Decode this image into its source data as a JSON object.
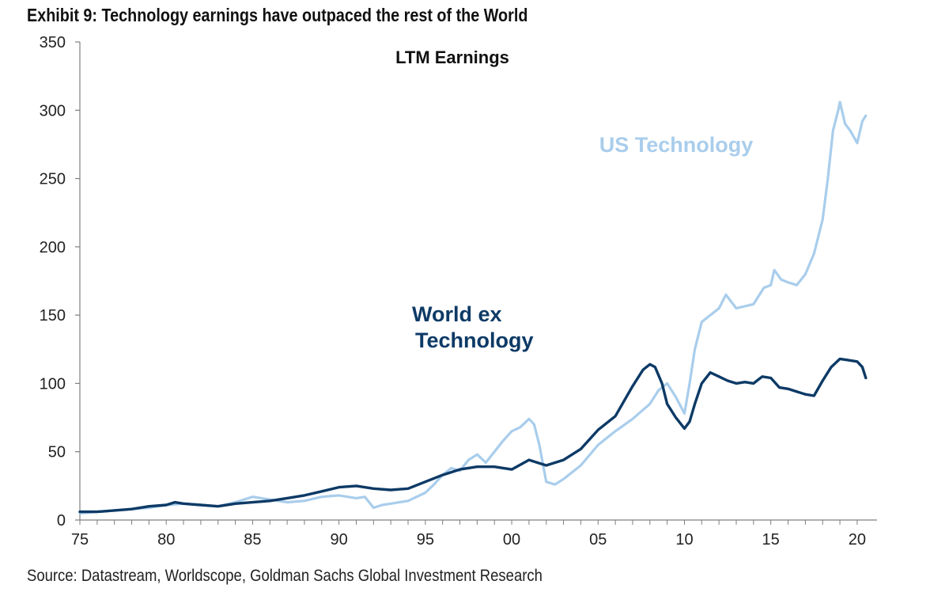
{
  "exhibit_title": "Exhibit 9: Technology earnings have outpaced the rest of the World",
  "source_note": "Source: Datastream, Worldscope, Goldman Sachs Global Investment Research",
  "colors": {
    "us_technology": "#a9cdec",
    "world_ex_technology": "#0d3a66",
    "axis": "#7f7f7f",
    "text": "#111111"
  },
  "chart_data": {
    "type": "line",
    "title": "LTM Earnings",
    "xlabel": "",
    "ylabel": "",
    "xlim": [
      1975,
      2020.6
    ],
    "ylim": [
      0,
      350
    ],
    "grid": false,
    "legend": "inline labels",
    "x_ticks": [
      1975,
      1980,
      1985,
      1990,
      1995,
      2000,
      2005,
      2010,
      2015,
      2020
    ],
    "x_tick_labels": [
      "75",
      "80",
      "85",
      "90",
      "95",
      "00",
      "05",
      "10",
      "15",
      "20"
    ],
    "y_ticks": [
      0,
      50,
      100,
      150,
      200,
      250,
      300,
      350
    ],
    "y_tick_labels": [
      "0",
      "50",
      "100",
      "150",
      "200",
      "250",
      "300",
      "350"
    ],
    "series": [
      {
        "name": "US Technology",
        "label_lines": [
          "US Technology"
        ],
        "x": [
          1975,
          1976,
          1977,
          1978,
          1979,
          1980,
          1981,
          1982,
          1983,
          1984,
          1985,
          1986,
          1987,
          1988,
          1989,
          1990,
          1990.5,
          1991,
          1991.5,
          1992,
          1992.5,
          1993,
          1994,
          1995,
          1995.5,
          1996,
          1996.5,
          1997,
          1997.5,
          1998,
          1998.5,
          1999,
          1999.5,
          2000,
          2000.5,
          2001,
          2001.3,
          2001.6,
          2002,
          2002.5,
          2003,
          2004,
          2005,
          2006,
          2007,
          2008,
          2008.5,
          2009,
          2009.5,
          2010,
          2010.3,
          2010.6,
          2011,
          2011.5,
          2012,
          2012.4,
          2012.7,
          2013,
          2014,
          2014.6,
          2015,
          2015.2,
          2015.6,
          2016,
          2016.5,
          2017,
          2017.5,
          2018,
          2018.3,
          2018.6,
          2018.9,
          2019,
          2019.3,
          2019.6,
          2020,
          2020.3,
          2020.5
        ],
        "values": [
          5,
          6,
          7,
          8,
          9,
          11,
          12,
          11,
          10,
          13,
          17,
          15,
          13,
          14,
          17,
          18,
          17,
          16,
          17,
          9,
          11,
          12,
          14,
          20,
          26,
          33,
          38,
          36,
          44,
          48,
          42,
          50,
          58,
          65,
          68,
          74,
          70,
          55,
          28,
          26,
          30,
          40,
          55,
          65,
          74,
          85,
          95,
          100,
          90,
          78,
          100,
          125,
          145,
          150,
          155,
          165,
          160,
          155,
          158,
          170,
          172,
          183,
          176,
          174,
          172,
          180,
          195,
          220,
          250,
          285,
          300,
          306,
          290,
          285,
          276,
          292,
          296
        ]
      },
      {
        "name": "World ex Technology",
        "label_lines": [
          "World ex",
          "Technology"
        ],
        "x": [
          1975,
          1976,
          1977,
          1978,
          1979,
          1980,
          1980.5,
          1981,
          1982,
          1983,
          1984,
          1985,
          1986,
          1987,
          1988,
          1989,
          1990,
          1991,
          1992,
          1993,
          1994,
          1995,
          1996,
          1997,
          1998,
          1999,
          2000,
          2001,
          2002,
          2003,
          2004,
          2005,
          2006,
          2007,
          2007.6,
          2008,
          2008.3,
          2008.7,
          2009,
          2009.5,
          2010,
          2010.3,
          2010.6,
          2011,
          2011.5,
          2012,
          2012.5,
          2013,
          2013.5,
          2014,
          2014.5,
          2015,
          2015.5,
          2016,
          2016.5,
          2017,
          2017.5,
          2018,
          2018.5,
          2019,
          2019.5,
          2020,
          2020.3,
          2020.5
        ],
        "values": [
          6,
          6,
          7,
          8,
          10,
          11,
          13,
          12,
          11,
          10,
          12,
          13,
          14,
          16,
          18,
          21,
          24,
          25,
          23,
          22,
          23,
          28,
          33,
          37,
          39,
          39,
          37,
          44,
          40,
          44,
          52,
          66,
          76,
          98,
          110,
          114,
          112,
          100,
          85,
          75,
          67,
          72,
          85,
          100,
          108,
          105,
          102,
          100,
          101,
          100,
          105,
          104,
          97,
          96,
          94,
          92,
          91,
          102,
          112,
          118,
          117,
          116,
          112,
          104
        ]
      }
    ]
  }
}
